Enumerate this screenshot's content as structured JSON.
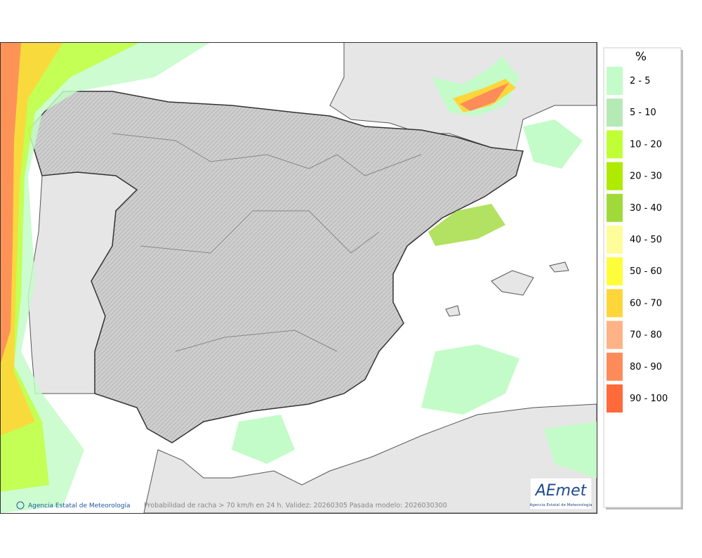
{
  "legend": {
    "title": "%",
    "items": [
      {
        "label": "2 - 5",
        "color": "#c3fcc8"
      },
      {
        "label": "5 - 10",
        "color": "#b4ebb4"
      },
      {
        "label": "10 - 20",
        "color": "#c0ff36"
      },
      {
        "label": "20 - 30",
        "color": "#aeeb00"
      },
      {
        "label": "30 - 40",
        "color": "#a0da3a"
      },
      {
        "label": "40 - 50",
        "color": "#fefd9a"
      },
      {
        "label": "50 - 60",
        "color": "#fefd3a"
      },
      {
        "label": "60 - 70",
        "color": "#fed63a"
      },
      {
        "label": "70 - 80",
        "color": "#feb386"
      },
      {
        "label": "80 - 90",
        "color": "#fe8b5a"
      },
      {
        "label": "90 - 100",
        "color": "#fe6a3a"
      }
    ]
  },
  "footer": {
    "credit": "Agencia Estatal de Meteorología",
    "caption": "Probabilidad de racha > 70 km/h en 24 h. Validez: 20260305 Pasada modelo: 2026030300"
  },
  "logo": {
    "name": "AEmet",
    "subtitle": "Agencia Estatal de Meteorología"
  }
}
